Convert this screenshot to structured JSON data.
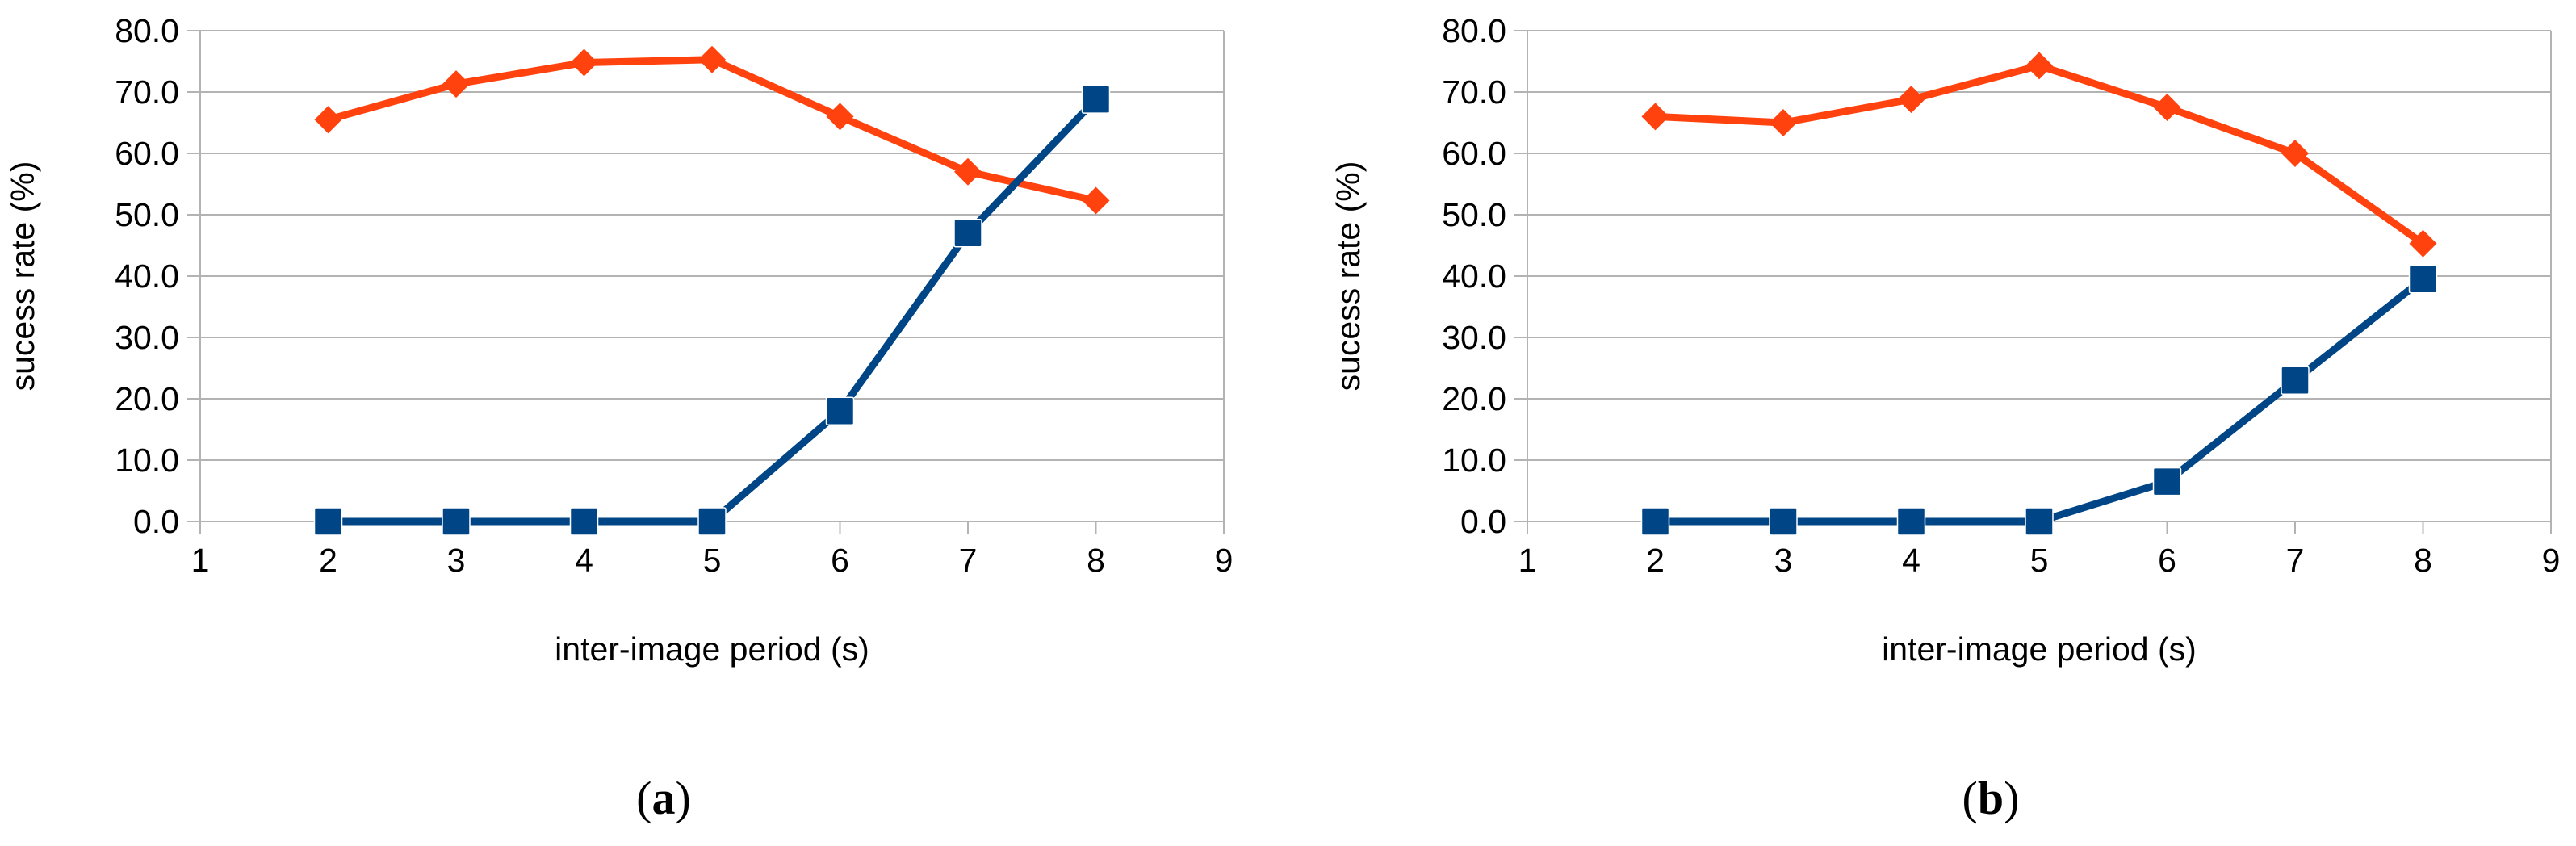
{
  "chart_data": [
    {
      "type": "line",
      "panel_label": "a",
      "xlabel": "inter-image period (s)",
      "ylabel": "sucess rate (%)",
      "xlim": [
        1,
        9
      ],
      "ylim": [
        0,
        80
      ],
      "x_ticks": [
        1,
        2,
        3,
        4,
        5,
        6,
        7,
        8,
        9
      ],
      "y_ticks": [
        "0.0",
        "10.0",
        "20.0",
        "30.0",
        "40.0",
        "50.0",
        "60.0",
        "70.0",
        "80.0"
      ],
      "grid": "horizontal",
      "legend": "none",
      "series": [
        {
          "color": "#ff420e",
          "marker": "diamond",
          "x": [
            2,
            3,
            4,
            5,
            6,
            7,
            8
          ],
          "values": [
            65.5,
            71.3,
            74.8,
            75.3,
            66.0,
            57.0,
            52.3
          ]
        },
        {
          "color": "#004586",
          "marker": "square",
          "x": [
            2,
            3,
            4,
            5,
            6,
            7,
            8
          ],
          "values": [
            0.0,
            0.0,
            0.0,
            0.0,
            18.0,
            47.0,
            68.8
          ]
        }
      ]
    },
    {
      "type": "line",
      "panel_label": "b",
      "xlabel": "inter-image period (s)",
      "ylabel": "sucess rate (%)",
      "xlim": [
        1,
        9
      ],
      "ylim": [
        0,
        80
      ],
      "x_ticks": [
        1,
        2,
        3,
        4,
        5,
        6,
        7,
        8,
        9
      ],
      "y_ticks": [
        "0.0",
        "10.0",
        "20.0",
        "30.0",
        "40.0",
        "50.0",
        "60.0",
        "70.0",
        "80.0"
      ],
      "grid": "horizontal",
      "legend": "none",
      "series": [
        {
          "color": "#ff420e",
          "marker": "diamond",
          "x": [
            2,
            3,
            4,
            5,
            6,
            7,
            8
          ],
          "values": [
            66.0,
            65.0,
            68.8,
            74.3,
            67.5,
            60.0,
            45.3
          ]
        },
        {
          "color": "#004586",
          "marker": "square",
          "x": [
            2,
            3,
            4,
            5,
            6,
            7,
            8
          ],
          "values": [
            0.0,
            0.0,
            0.0,
            0.0,
            6.5,
            23.0,
            39.5
          ]
        }
      ]
    }
  ]
}
